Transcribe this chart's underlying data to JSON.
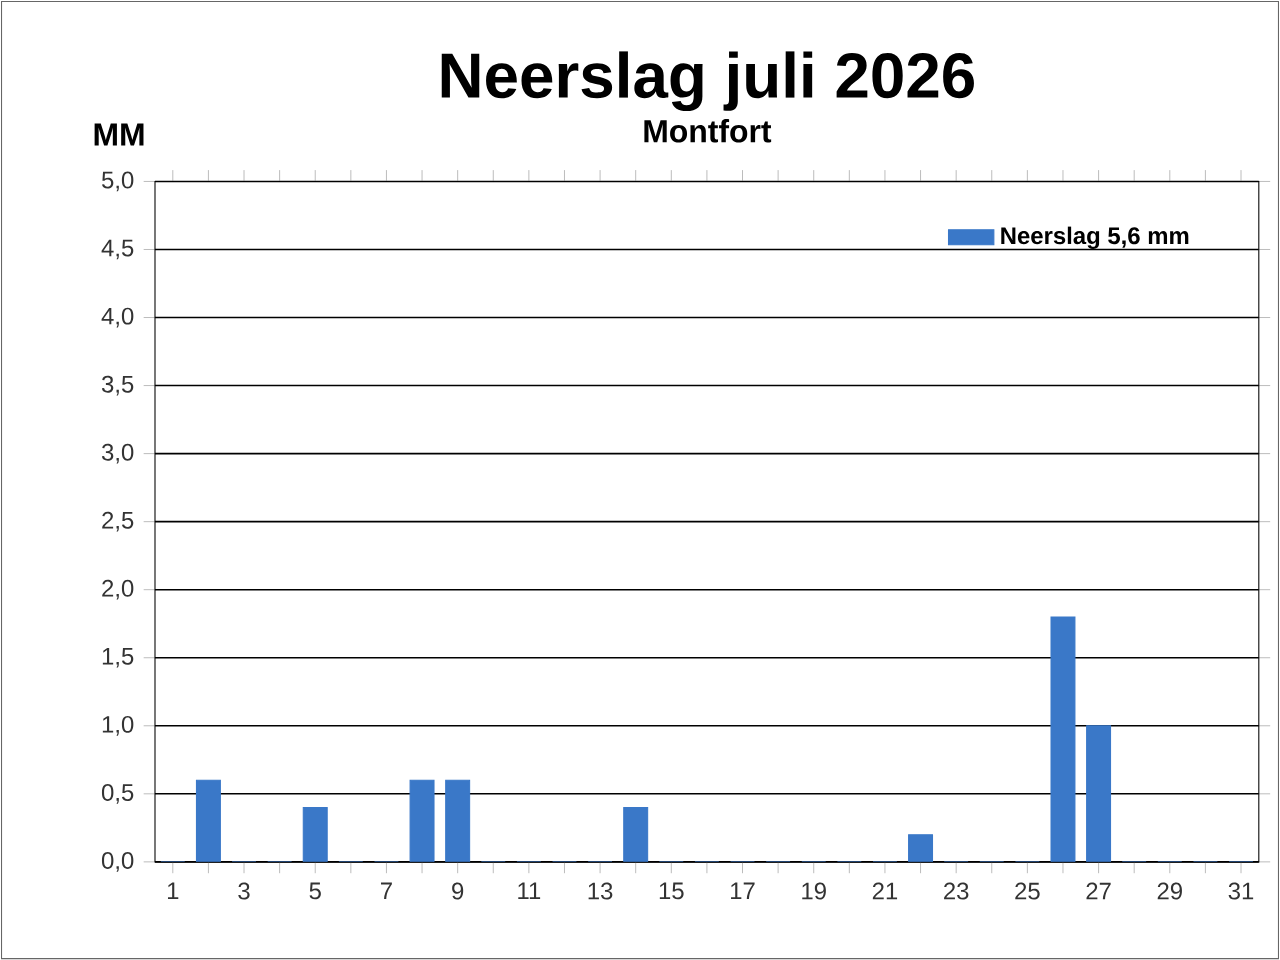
{
  "chart_data": {
    "type": "bar",
    "title": "Neerslag juli 2026",
    "subtitle": "Montfort",
    "ylabel": "MM",
    "categories": [
      "1",
      null,
      "3",
      null,
      "5",
      null,
      "7",
      null,
      "9",
      null,
      "11",
      null,
      "13",
      null,
      "15",
      null,
      "17",
      null,
      "19",
      null,
      "21",
      null,
      "23",
      null,
      "25",
      null,
      "27",
      null,
      "29",
      null,
      "31"
    ],
    "series": [
      {
        "name": "Neerslag 5,6 mm",
        "color": "#3a78c8",
        "values": [
          0,
          0.6,
          0,
          0,
          0.4,
          0,
          0,
          0.6,
          0.6,
          0,
          0,
          0,
          0,
          0.4,
          0,
          0,
          0,
          0,
          0,
          0,
          0,
          0.2,
          0,
          0,
          0,
          1.8,
          1.0,
          0,
          0,
          0,
          0
        ]
      }
    ],
    "ylim": [
      0,
      5
    ],
    "yticks": [
      {
        "value": 0,
        "label": "0,0"
      },
      {
        "value": 0.5,
        "label": "0,5"
      },
      {
        "value": 1,
        "label": "1,0"
      },
      {
        "value": 1.5,
        "label": "1,5"
      },
      {
        "value": 2,
        "label": "2,0"
      },
      {
        "value": 2.5,
        "label": "2,5"
      },
      {
        "value": 3,
        "label": "3,0"
      },
      {
        "value": 3.5,
        "label": "3,5"
      },
      {
        "value": 4,
        "label": "4,0"
      },
      {
        "value": 4.5,
        "label": "4,5"
      },
      {
        "value": 5,
        "label": "5,0"
      }
    ],
    "grid": "y",
    "legend": "top right"
  }
}
